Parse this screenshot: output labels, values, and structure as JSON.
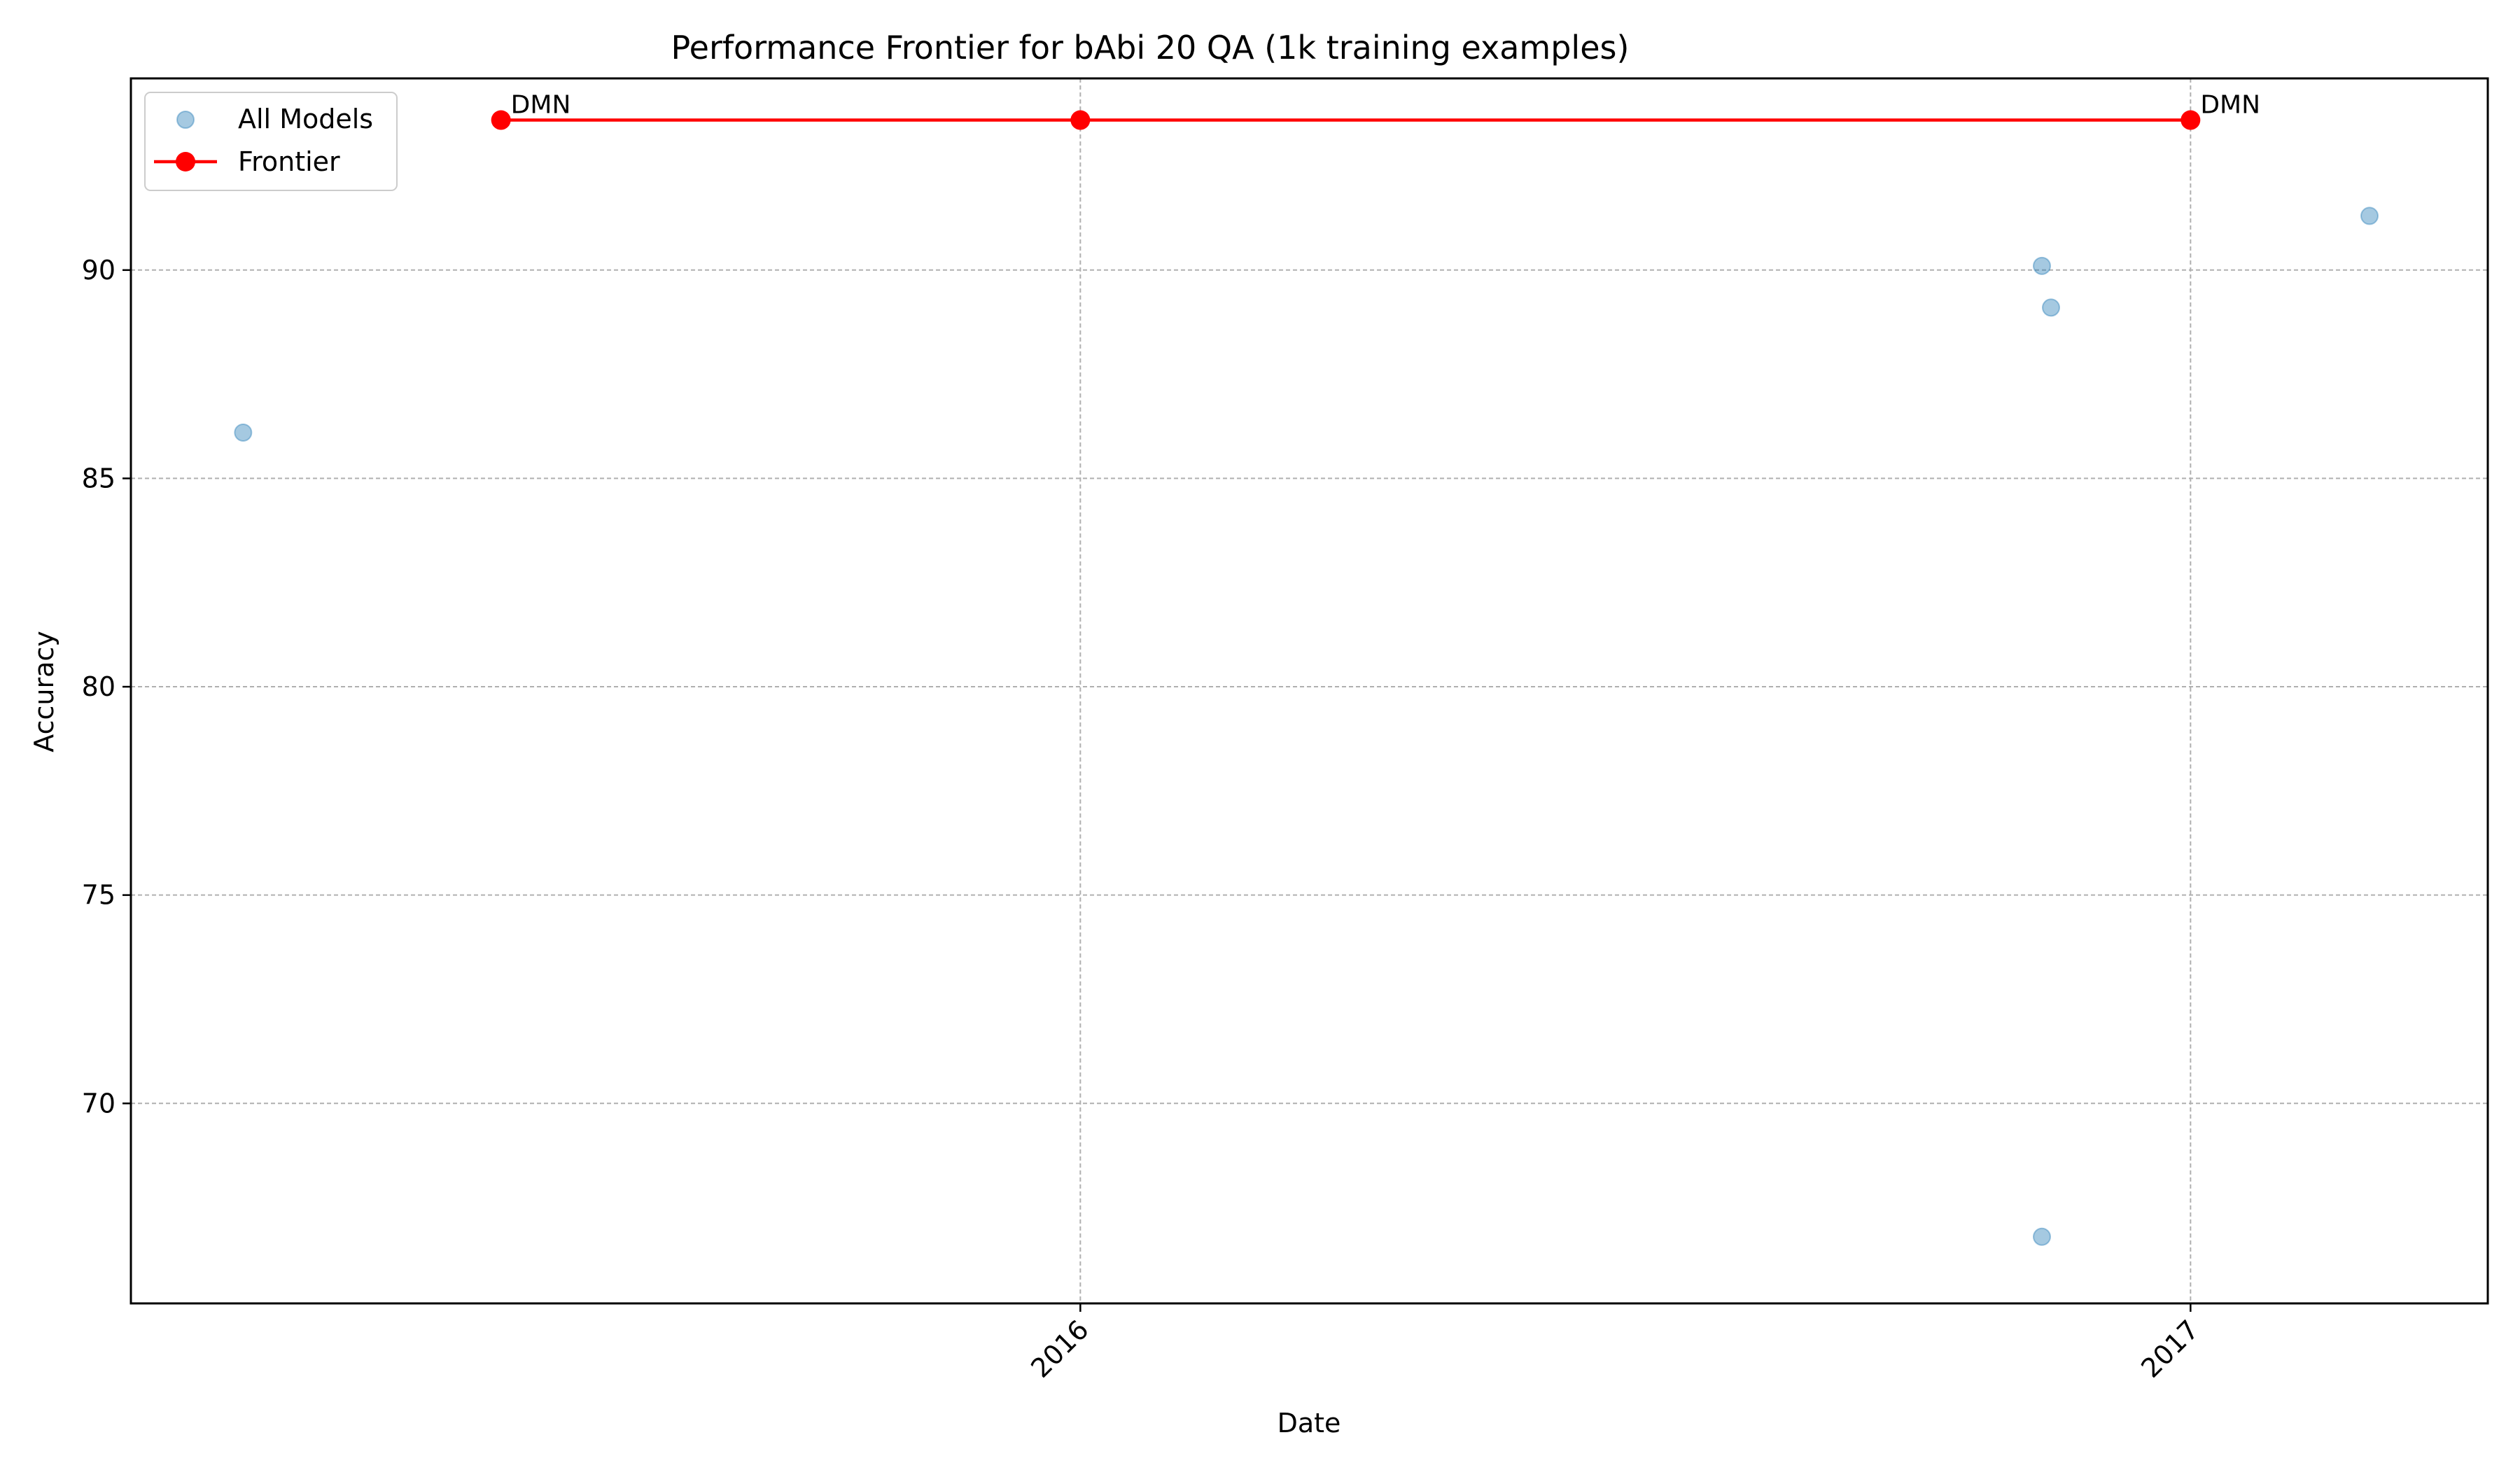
{
  "chart_data": {
    "type": "scatter",
    "title": "Performance Frontier for bAbi 20 QA (1k training examples)",
    "xlabel": "Date",
    "ylabel": "Accuracy",
    "x_type": "date",
    "xlim": [
      "2015-02-22",
      "2017-04-09"
    ],
    "ylim": [
      65.2,
      94.6
    ],
    "x_ticks": [
      "2016-01-01",
      "2017-01-01"
    ],
    "x_tick_labels": [
      "2016",
      "2017"
    ],
    "y_ticks": [
      70,
      75,
      80,
      85,
      90
    ],
    "grid": true,
    "legend": {
      "position": "top-left",
      "entries": [
        "All Models",
        "Frontier"
      ]
    },
    "series": [
      {
        "name": "All Models",
        "type": "scatter",
        "color": "#1f77b4",
        "points": [
          {
            "x": "2015-03-31",
            "y": 86.1
          },
          {
            "x": "2016-11-13",
            "y": 90.1
          },
          {
            "x": "2016-11-16",
            "y": 89.1
          },
          {
            "x": "2016-11-13",
            "y": 66.8
          },
          {
            "x": "2017-03-01",
            "y": 91.3
          }
        ]
      },
      {
        "name": "Frontier",
        "type": "line",
        "color": "#ff0000",
        "points": [
          {
            "x": "2015-06-24",
            "y": 93.6
          },
          {
            "x": "2016-01-01",
            "y": 93.6
          },
          {
            "x": "2017-01-01",
            "y": 93.6
          }
        ]
      }
    ],
    "annotations": [
      {
        "text": "DMN",
        "x": "2015-06-24",
        "y": 93.6
      },
      {
        "text": "DMN",
        "x": "2017-01-01",
        "y": 93.6
      }
    ]
  }
}
